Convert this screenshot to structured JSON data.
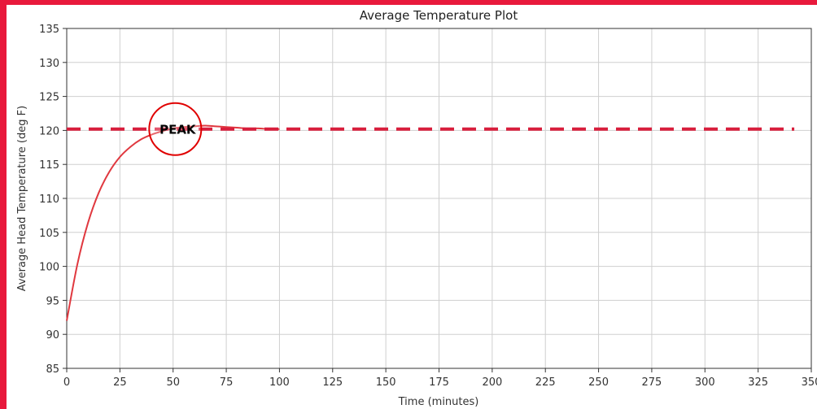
{
  "colors": {
    "border": "#e8193c",
    "series_line": "#e0383f",
    "reference_line": "#d81e3c",
    "highlight_circle": "#e00000",
    "grid": "#cfcfcf",
    "axis": "#333333"
  },
  "chart_data": {
    "type": "line",
    "title": "Average Temperature Plot",
    "xlabel": "Time (minutes)",
    "ylabel": "Average Head Temperature (deg F)",
    "xlim": [
      0,
      350
    ],
    "ylim": [
      85,
      135
    ],
    "xticks": [
      0,
      25,
      50,
      75,
      100,
      125,
      150,
      175,
      200,
      225,
      250,
      275,
      300,
      325,
      350
    ],
    "yticks": [
      85,
      90,
      95,
      100,
      105,
      110,
      115,
      120,
      125,
      130,
      135
    ],
    "xtick_labels": [
      "0",
      "25",
      "50",
      "75",
      "100",
      "125",
      "150",
      "175",
      "200",
      "225",
      "250",
      "275",
      "300",
      "325",
      "350"
    ],
    "ytick_labels": [
      "85",
      "90",
      "95",
      "100",
      "105",
      "110",
      "115",
      "120",
      "125",
      "130",
      "135"
    ],
    "grid": true,
    "series": [
      {
        "x": [
          0,
          5,
          10,
          15,
          20,
          25,
          30,
          35,
          40,
          45,
          50,
          55,
          60,
          65,
          70,
          75,
          80,
          85,
          90,
          95,
          100
        ],
        "values": [
          92.0,
          100.3,
          106.4,
          110.8,
          113.9,
          116.1,
          117.6,
          118.7,
          119.4,
          119.9,
          120.3,
          120.5,
          120.6,
          120.7,
          120.6,
          120.5,
          120.4,
          120.3,
          120.3,
          120.2,
          120.2
        ]
      }
    ],
    "reference_line": {
      "y": 120.2,
      "x_start": 0,
      "x_end": 342,
      "style": "dashed"
    },
    "annotations": [
      {
        "text": "PEAK",
        "x": 51,
        "y": 120.2,
        "marker": "circle"
      }
    ]
  }
}
